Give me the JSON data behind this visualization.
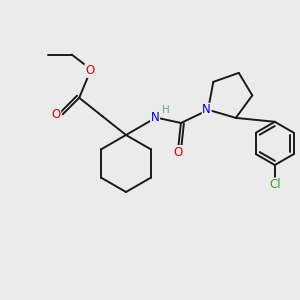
{
  "background_color": "#ebebeb",
  "bond_color": "#1a1a1a",
  "atom_colors": {
    "O": "#dd0000",
    "N": "#0000cc",
    "Cl": "#22aa22",
    "H": "#7a9a9a",
    "C": "#1a1a1a"
  },
  "figsize": [
    3.0,
    3.0
  ],
  "dpi": 100
}
